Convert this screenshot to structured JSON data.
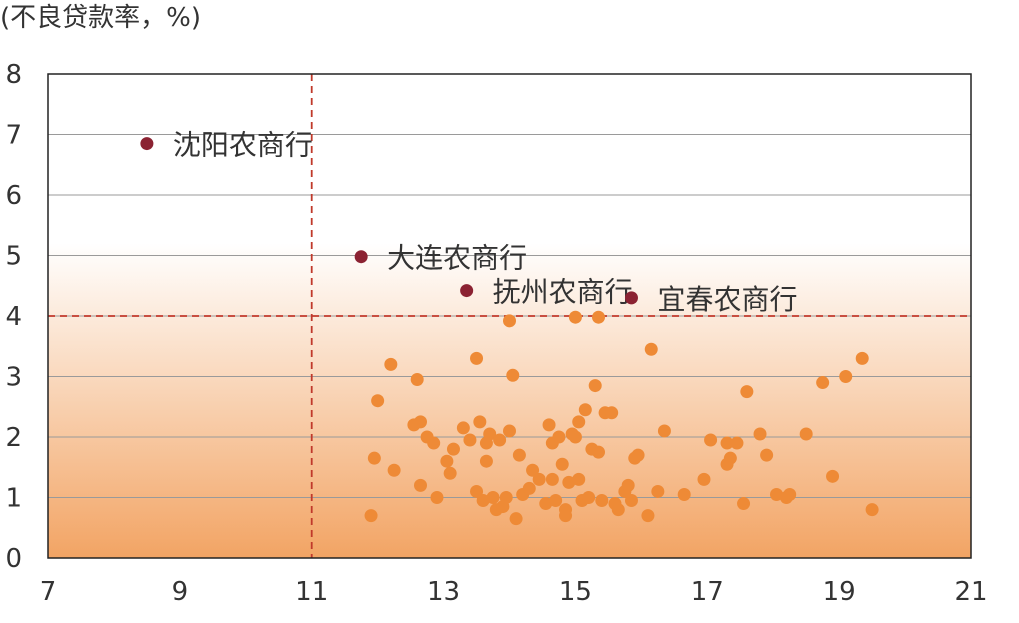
{
  "chart_data": {
    "type": "scatter",
    "ylabel": "(不良贷款率，%)",
    "xlabel": "",
    "xlim": [
      7,
      21
    ],
    "ylim": [
      0,
      8
    ],
    "x_ticks": [
      "7",
      "9",
      "11",
      "13",
      "15",
      "17",
      "19",
      "21"
    ],
    "y_ticks": [
      "0",
      "1",
      "2",
      "3",
      "4",
      "5",
      "6",
      "7",
      "8"
    ],
    "grid": "horizontal",
    "reference_lines": {
      "x": 11,
      "y": 4
    },
    "colors": {
      "highlight": "#8b2232",
      "points": "#ee8a36",
      "reference": "#c0392b",
      "gradient_top": "#ffffff",
      "gradient_bottom": "#f2a464"
    },
    "highlighted": [
      {
        "label": "沈阳农商行",
        "x": 8.5,
        "y": 6.85
      },
      {
        "label": "大连农商行",
        "x": 11.75,
        "y": 4.98
      },
      {
        "label": "抚州农商行",
        "x": 13.35,
        "y": 4.42
      },
      {
        "label": "宜春农商行",
        "x": 15.85,
        "y": 4.3
      }
    ],
    "points": [
      [
        11.9,
        0.7
      ],
      [
        11.95,
        1.65
      ],
      [
        12.0,
        2.6
      ],
      [
        12.2,
        3.2
      ],
      [
        12.25,
        1.45
      ],
      [
        12.55,
        2.2
      ],
      [
        12.6,
        2.95
      ],
      [
        12.65,
        2.25
      ],
      [
        12.65,
        1.2
      ],
      [
        12.75,
        2.0
      ],
      [
        12.85,
        1.9
      ],
      [
        12.9,
        1.0
      ],
      [
        13.05,
        1.6
      ],
      [
        13.1,
        1.4
      ],
      [
        13.15,
        1.8
      ],
      [
        13.3,
        2.15
      ],
      [
        13.4,
        1.95
      ],
      [
        13.5,
        3.3
      ],
      [
        13.5,
        1.1
      ],
      [
        13.55,
        2.25
      ],
      [
        13.6,
        0.95
      ],
      [
        13.65,
        1.6
      ],
      [
        13.65,
        1.9
      ],
      [
        13.7,
        2.05
      ],
      [
        13.75,
        1.0
      ],
      [
        13.8,
        0.8
      ],
      [
        13.85,
        1.95
      ],
      [
        13.9,
        0.85
      ],
      [
        13.95,
        1.0
      ],
      [
        14.0,
        2.1
      ],
      [
        14.0,
        3.92
      ],
      [
        14.05,
        3.02
      ],
      [
        14.1,
        0.65
      ],
      [
        14.15,
        1.7
      ],
      [
        14.2,
        1.05
      ],
      [
        14.3,
        1.15
      ],
      [
        14.35,
        1.45
      ],
      [
        14.45,
        1.3
      ],
      [
        14.55,
        0.9
      ],
      [
        14.6,
        2.2
      ],
      [
        14.65,
        1.9
      ],
      [
        14.65,
        1.3
      ],
      [
        14.7,
        0.95
      ],
      [
        14.75,
        2.0
      ],
      [
        14.8,
        1.55
      ],
      [
        14.85,
        0.8
      ],
      [
        14.85,
        0.7
      ],
      [
        14.9,
        1.25
      ],
      [
        14.95,
        2.05
      ],
      [
        15.0,
        3.98
      ],
      [
        15.0,
        2.0
      ],
      [
        15.05,
        2.25
      ],
      [
        15.05,
        1.3
      ],
      [
        15.1,
        0.95
      ],
      [
        15.15,
        2.45
      ],
      [
        15.2,
        1.0
      ],
      [
        15.25,
        1.8
      ],
      [
        15.3,
        2.85
      ],
      [
        15.35,
        3.98
      ],
      [
        15.35,
        1.75
      ],
      [
        15.4,
        0.95
      ],
      [
        15.45,
        2.4
      ],
      [
        15.55,
        2.4
      ],
      [
        15.6,
        0.9
      ],
      [
        15.65,
        0.8
      ],
      [
        15.75,
        1.1
      ],
      [
        15.8,
        1.2
      ],
      [
        15.85,
        0.95
      ],
      [
        15.9,
        1.65
      ],
      [
        15.95,
        1.7
      ],
      [
        16.1,
        0.7
      ],
      [
        16.15,
        3.45
      ],
      [
        16.25,
        1.1
      ],
      [
        16.35,
        2.1
      ],
      [
        16.65,
        1.05
      ],
      [
        16.95,
        1.3
      ],
      [
        17.05,
        1.95
      ],
      [
        17.3,
        1.9
      ],
      [
        17.3,
        1.55
      ],
      [
        17.35,
        1.65
      ],
      [
        17.45,
        1.9
      ],
      [
        17.55,
        0.9
      ],
      [
        17.6,
        2.75
      ],
      [
        17.8,
        2.05
      ],
      [
        17.9,
        1.7
      ],
      [
        18.05,
        1.05
      ],
      [
        18.2,
        1.0
      ],
      [
        18.25,
        1.05
      ],
      [
        18.5,
        2.05
      ],
      [
        18.75,
        2.9
      ],
      [
        18.9,
        1.35
      ],
      [
        19.1,
        3.0
      ],
      [
        19.35,
        3.3
      ],
      [
        19.5,
        0.8
      ]
    ]
  }
}
